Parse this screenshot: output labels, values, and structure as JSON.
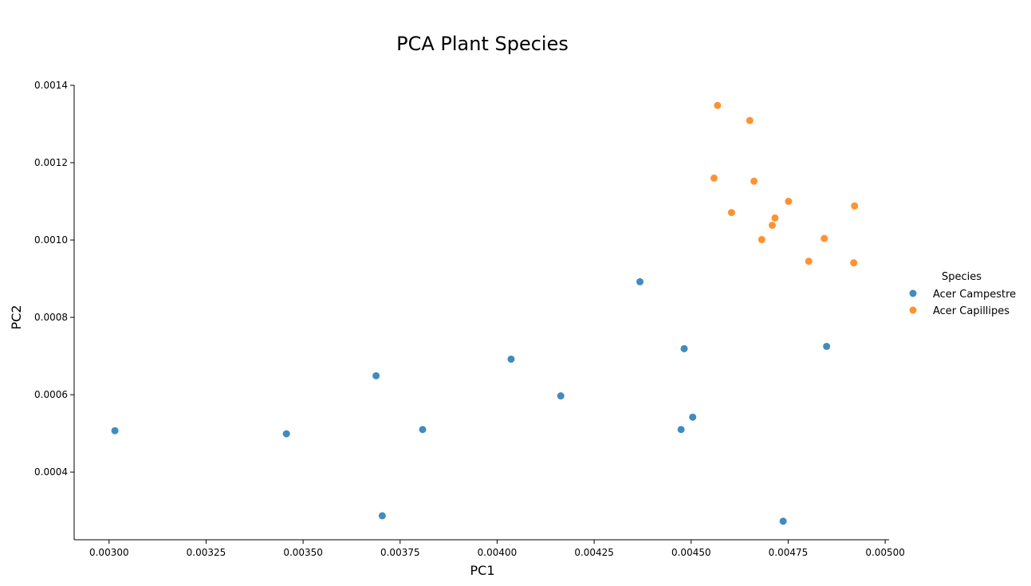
{
  "chart_data": {
    "type": "scatter",
    "title": "PCA Plant Species",
    "xlabel": "PC1",
    "ylabel": "PC2",
    "xlim": [
      0.00291,
      0.00501
    ],
    "ylim": [
      0.000225,
      0.0014
    ],
    "xticks": [
      0.003,
      0.00325,
      0.0035,
      0.00375,
      0.004,
      0.00425,
      0.0045,
      0.00475,
      0.005
    ],
    "xtick_labels": [
      "0.00300",
      "0.00325",
      "0.00350",
      "0.00375",
      "0.00400",
      "0.00425",
      "0.00450",
      "0.00475",
      "0.00500"
    ],
    "yticks": [
      0.0004,
      0.0006,
      0.0008,
      0.001,
      0.0012,
      0.0014
    ],
    "ytick_labels": [
      "0.0004",
      "0.0006",
      "0.0008",
      "0.0010",
      "0.0012",
      "0.0014"
    ],
    "grid": false,
    "legend": {
      "title": "Species",
      "placement": "right"
    },
    "series": [
      {
        "name": "Acer Campestre",
        "color": "#1f77b4",
        "points": [
          [
            0.003015,
            0.000507
          ],
          [
            0.003457,
            0.000499
          ],
          [
            0.003688,
            0.000649
          ],
          [
            0.003704,
            0.000287
          ],
          [
            0.003808,
            0.00051
          ],
          [
            0.004036,
            0.000692
          ],
          [
            0.004164,
            0.000597
          ],
          [
            0.004368,
            0.000892
          ],
          [
            0.004474,
            0.00051
          ],
          [
            0.004482,
            0.000719
          ],
          [
            0.004504,
            0.000542
          ],
          [
            0.004737,
            0.000273
          ],
          [
            0.004849,
            0.000725
          ]
        ]
      },
      {
        "name": "Acer Capillipes",
        "color": "#ff7f0e",
        "points": [
          [
            0.004559,
            0.00116
          ],
          [
            0.004568,
            0.001348
          ],
          [
            0.004604,
            0.001071
          ],
          [
            0.004651,
            0.001309
          ],
          [
            0.004662,
            0.001152
          ],
          [
            0.004682,
            0.001001
          ],
          [
            0.004709,
            0.001038
          ],
          [
            0.004716,
            0.001057
          ],
          [
            0.004751,
            0.0011
          ],
          [
            0.004803,
            0.000945
          ],
          [
            0.004843,
            0.001004
          ],
          [
            0.004919,
            0.000941
          ],
          [
            0.004921,
            0.001088
          ]
        ]
      }
    ]
  }
}
